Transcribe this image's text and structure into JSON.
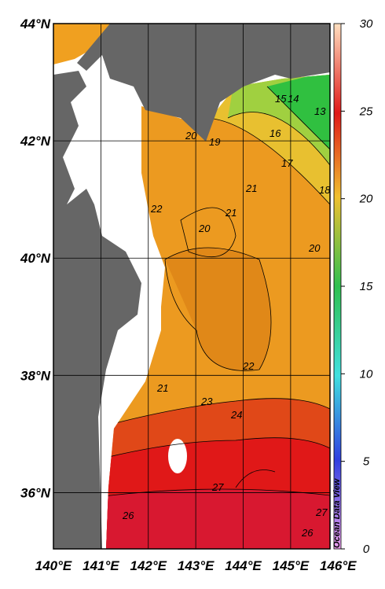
{
  "map": {
    "lon_ticks": [
      {
        "value": 140,
        "label": "140°E"
      },
      {
        "value": 141,
        "label": "141°E"
      },
      {
        "value": 142,
        "label": "142°E"
      },
      {
        "value": 143,
        "label": "143°E"
      },
      {
        "value": 144,
        "label": "144°E"
      },
      {
        "value": 145,
        "label": "145°E"
      },
      {
        "value": 146,
        "label": "146°E"
      }
    ],
    "lat_ticks": [
      {
        "value": 44,
        "label": "44°N"
      },
      {
        "value": 42,
        "label": "42°N"
      },
      {
        "value": 40,
        "label": "40°N"
      },
      {
        "value": 38,
        "label": "38°N"
      },
      {
        "value": 36,
        "label": "36°N"
      }
    ],
    "lon_range": [
      140,
      145.83
    ],
    "lat_range": [
      44,
      35.04
    ],
    "colorbar": {
      "range": [
        0,
        30
      ],
      "ticks": [
        0,
        5,
        10,
        15,
        20,
        25,
        30
      ]
    },
    "contour_labels": [
      14,
      15,
      13,
      16,
      17,
      18,
      20,
      19,
      21,
      21,
      20,
      22,
      20,
      21,
      22,
      23,
      24,
      27,
      26,
      27,
      26
    ],
    "watermark": "Ocean Data View"
  }
}
